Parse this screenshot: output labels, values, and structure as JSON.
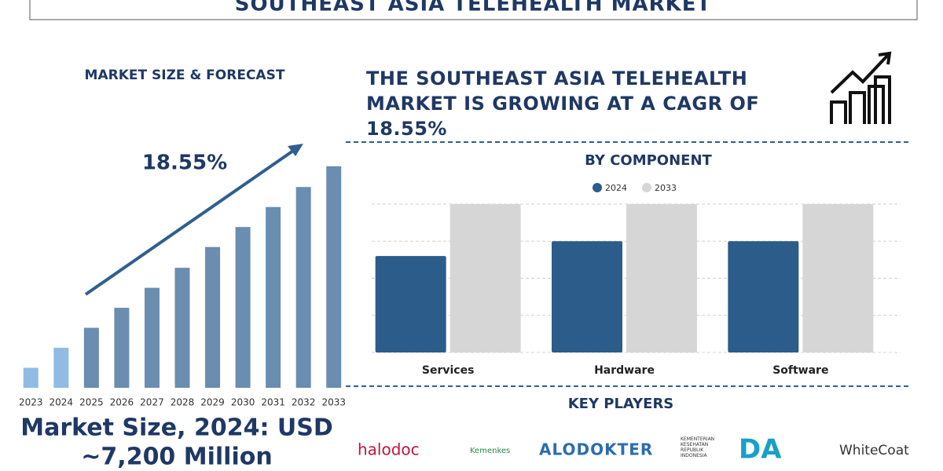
{
  "title": "SOUTHEAST ASIA TELEHEALTH MARKET",
  "headline": "THE SOUTHEAST ASIA TELEHEALTH MARKET IS GROWING AT A CAGR OF 18.55%",
  "market_size": [
    "Market Size, 2024: USD",
    "~7,200 Million"
  ],
  "chart_data": [
    {
      "type": "bar",
      "title": "MARKET SIZE & FORECAST",
      "annotation": "18.55%",
      "categories": [
        "2023",
        "2024",
        "2025",
        "2026",
        "2027",
        "2028",
        "2029",
        "2030",
        "2031",
        "2032",
        "2033"
      ],
      "values": [
        26,
        52,
        78,
        104,
        130,
        156,
        183,
        209,
        235,
        261,
        288
      ],
      "colors": [
        "#91bbe3",
        "#91bbe3",
        "#6a8db0",
        "#6a8db0",
        "#6a8db0",
        "#6a8db0",
        "#6a8db0",
        "#6a8db0",
        "#6a8db0",
        "#6a8db0",
        "#6a8db0"
      ],
      "ylim": [
        0,
        300
      ]
    },
    {
      "type": "grouped_bar",
      "title": "BY COMPONENT",
      "categories": [
        "Services",
        "Hardware",
        "Software"
      ],
      "series": [
        {
          "name": "2024",
          "color": "#2b5c8a",
          "values": [
            2.6,
            3.0,
            3.0
          ]
        },
        {
          "name": "2033",
          "color": "#d6d6d6",
          "values": [
            4.0,
            4.0,
            4.0
          ]
        }
      ],
      "ylim": [
        0,
        4
      ],
      "gridlines": [
        0,
        1,
        2,
        3,
        4
      ]
    }
  ],
  "key_players": {
    "title": "KEY PLAYERS",
    "logos": [
      "halodoc",
      "Kemenkes",
      "ALODOKTER",
      "KEMENTERIAN KESEHATAN REPUBLIK INDONESIA",
      "DA",
      "WhiteCoat"
    ]
  }
}
